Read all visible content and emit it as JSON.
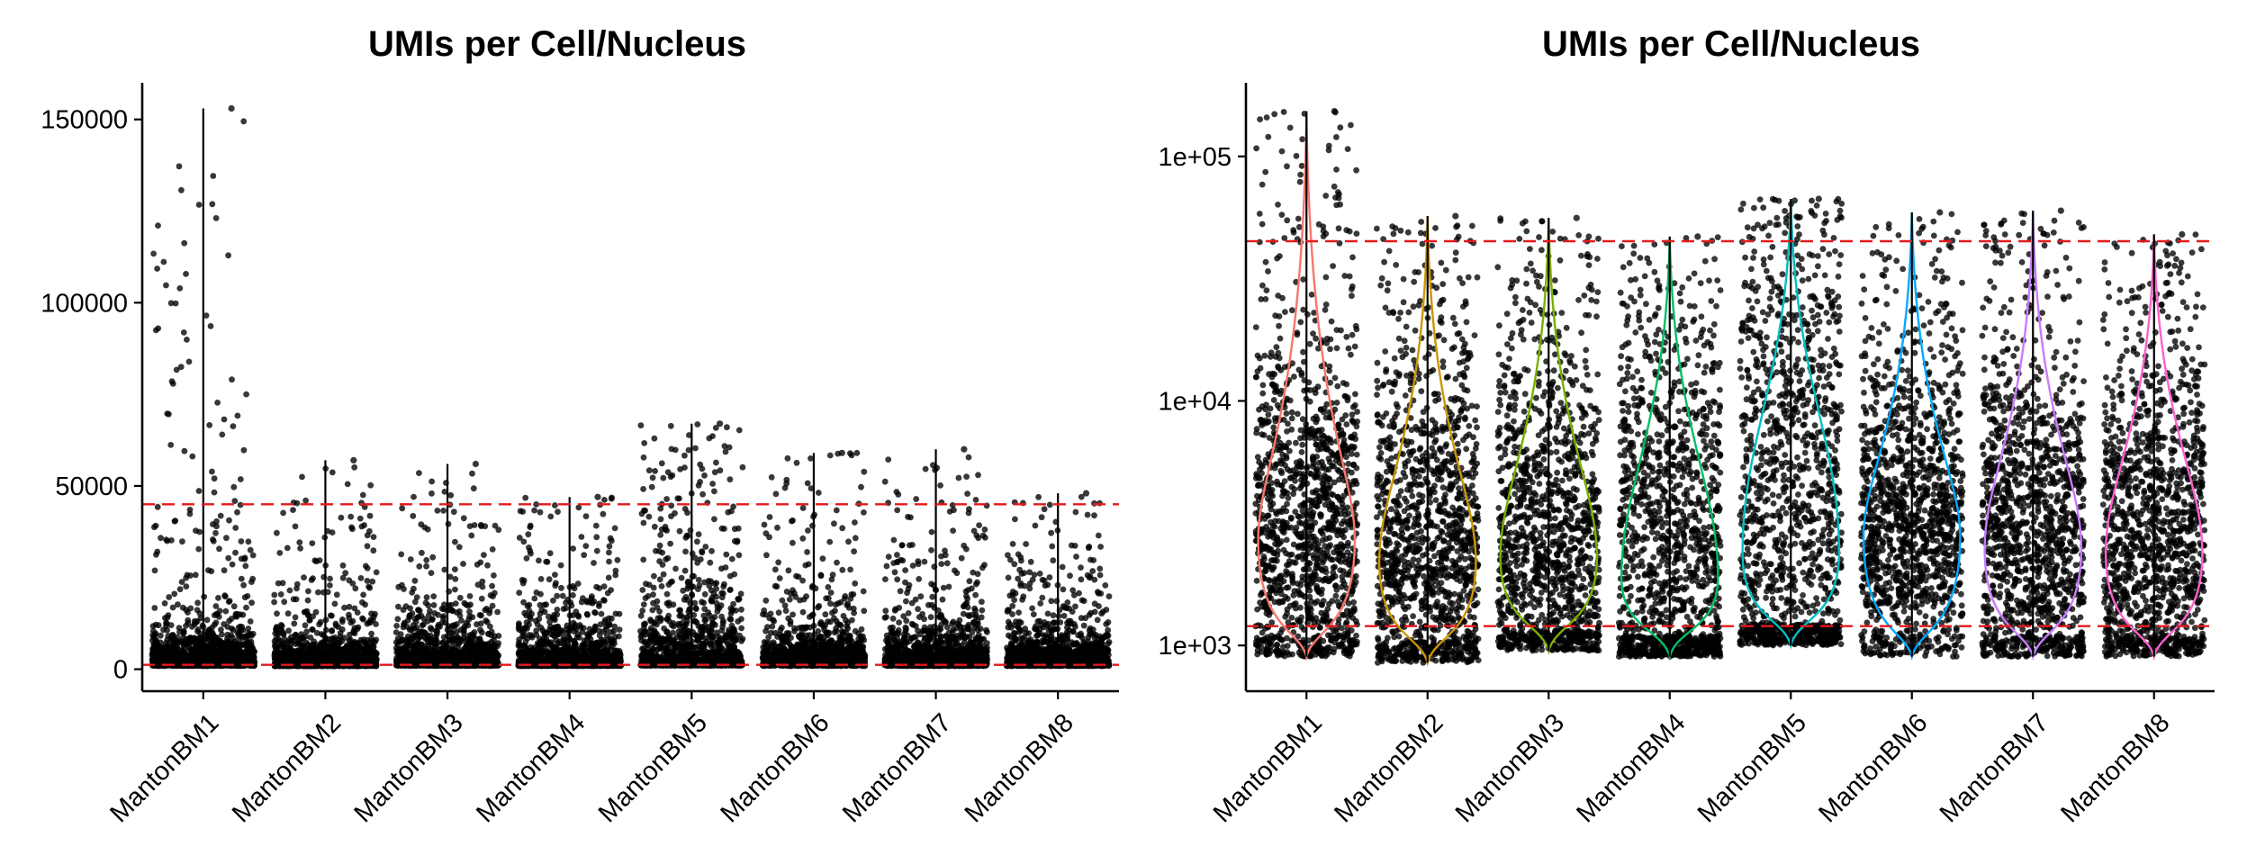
{
  "chart_data": [
    {
      "type": "scatter",
      "title": "UMIs per Cell/Nucleus",
      "xlabel": "",
      "ylabel": "",
      "y_scale": "linear",
      "ylim": [
        -6000,
        160000
      ],
      "y_ticks": [
        0,
        50000,
        100000,
        150000
      ],
      "y_tick_labels": [
        "0",
        "50000",
        "100000",
        "150000"
      ],
      "categories": [
        "MantonBM1",
        "MantonBM2",
        "MantonBM3",
        "MantonBM4",
        "MantonBM5",
        "MantonBM6",
        "MantonBM7",
        "MantonBM8"
      ],
      "thresholds": [
        1200,
        45000
      ],
      "threshold_color": "#e31a1c",
      "point_color": "#000000",
      "grid": false,
      "series": [
        {
          "category": "MantonBM1",
          "min": 900,
          "median": 2700,
          "max": 153000,
          "upper_quartile": 4800
        },
        {
          "category": "MantonBM2",
          "min": 850,
          "median": 2200,
          "max": 57000,
          "upper_quartile": 4000
        },
        {
          "category": "MantonBM3",
          "min": 950,
          "median": 2300,
          "max": 56000,
          "upper_quartile": 4200
        },
        {
          "category": "MantonBM4",
          "min": 900,
          "median": 1900,
          "max": 47000,
          "upper_quartile": 4200
        },
        {
          "category": "MantonBM5",
          "min": 1000,
          "median": 2400,
          "max": 67000,
          "upper_quartile": 6500
        },
        {
          "category": "MantonBM6",
          "min": 900,
          "median": 2800,
          "max": 59000,
          "upper_quartile": 4600
        },
        {
          "category": "MantonBM7",
          "min": 900,
          "median": 2500,
          "max": 60000,
          "upper_quartile": 4500
        },
        {
          "category": "MantonBM8",
          "min": 900,
          "median": 2400,
          "max": 48000,
          "upper_quartile": 4400
        }
      ]
    },
    {
      "type": "scatter",
      "title": "UMIs per Cell/Nucleus",
      "xlabel": "",
      "ylabel": "",
      "y_scale": "log10",
      "ylim": [
        650,
        200000
      ],
      "y_ticks": [
        1000,
        10000,
        100000
      ],
      "y_tick_labels": [
        "1e+03",
        "1e+04",
        "1e+05"
      ],
      "categories": [
        "MantonBM1",
        "MantonBM2",
        "MantonBM3",
        "MantonBM4",
        "MantonBM5",
        "MantonBM6",
        "MantonBM7",
        "MantonBM8"
      ],
      "thresholds": [
        1200,
        45000
      ],
      "threshold_color": "#e31a1c",
      "point_color": "#000000",
      "grid": false,
      "violin_colors": [
        "#f8766d",
        "#cd9600",
        "#7cae00",
        "#00be67",
        "#00bfc4",
        "#00a9ff",
        "#c77cff",
        "#ff61cc"
      ],
      "series": [
        {
          "category": "MantonBM1",
          "min": 900,
          "median": 2700,
          "max": 153000,
          "upper_quartile": 4800
        },
        {
          "category": "MantonBM2",
          "min": 850,
          "median": 2200,
          "max": 57000,
          "upper_quartile": 4000
        },
        {
          "category": "MantonBM3",
          "min": 950,
          "median": 2300,
          "max": 56000,
          "upper_quartile": 4200
        },
        {
          "category": "MantonBM4",
          "min": 900,
          "median": 1900,
          "max": 47000,
          "upper_quartile": 4200
        },
        {
          "category": "MantonBM5",
          "min": 1000,
          "median": 2400,
          "max": 67000,
          "upper_quartile": 6500
        },
        {
          "category": "MantonBM6",
          "min": 900,
          "median": 2800,
          "max": 59000,
          "upper_quartile": 4600
        },
        {
          "category": "MantonBM7",
          "min": 900,
          "median": 2500,
          "max": 60000,
          "upper_quartile": 4500
        },
        {
          "category": "MantonBM8",
          "min": 900,
          "median": 2400,
          "max": 48000,
          "upper_quartile": 4400
        }
      ]
    }
  ]
}
